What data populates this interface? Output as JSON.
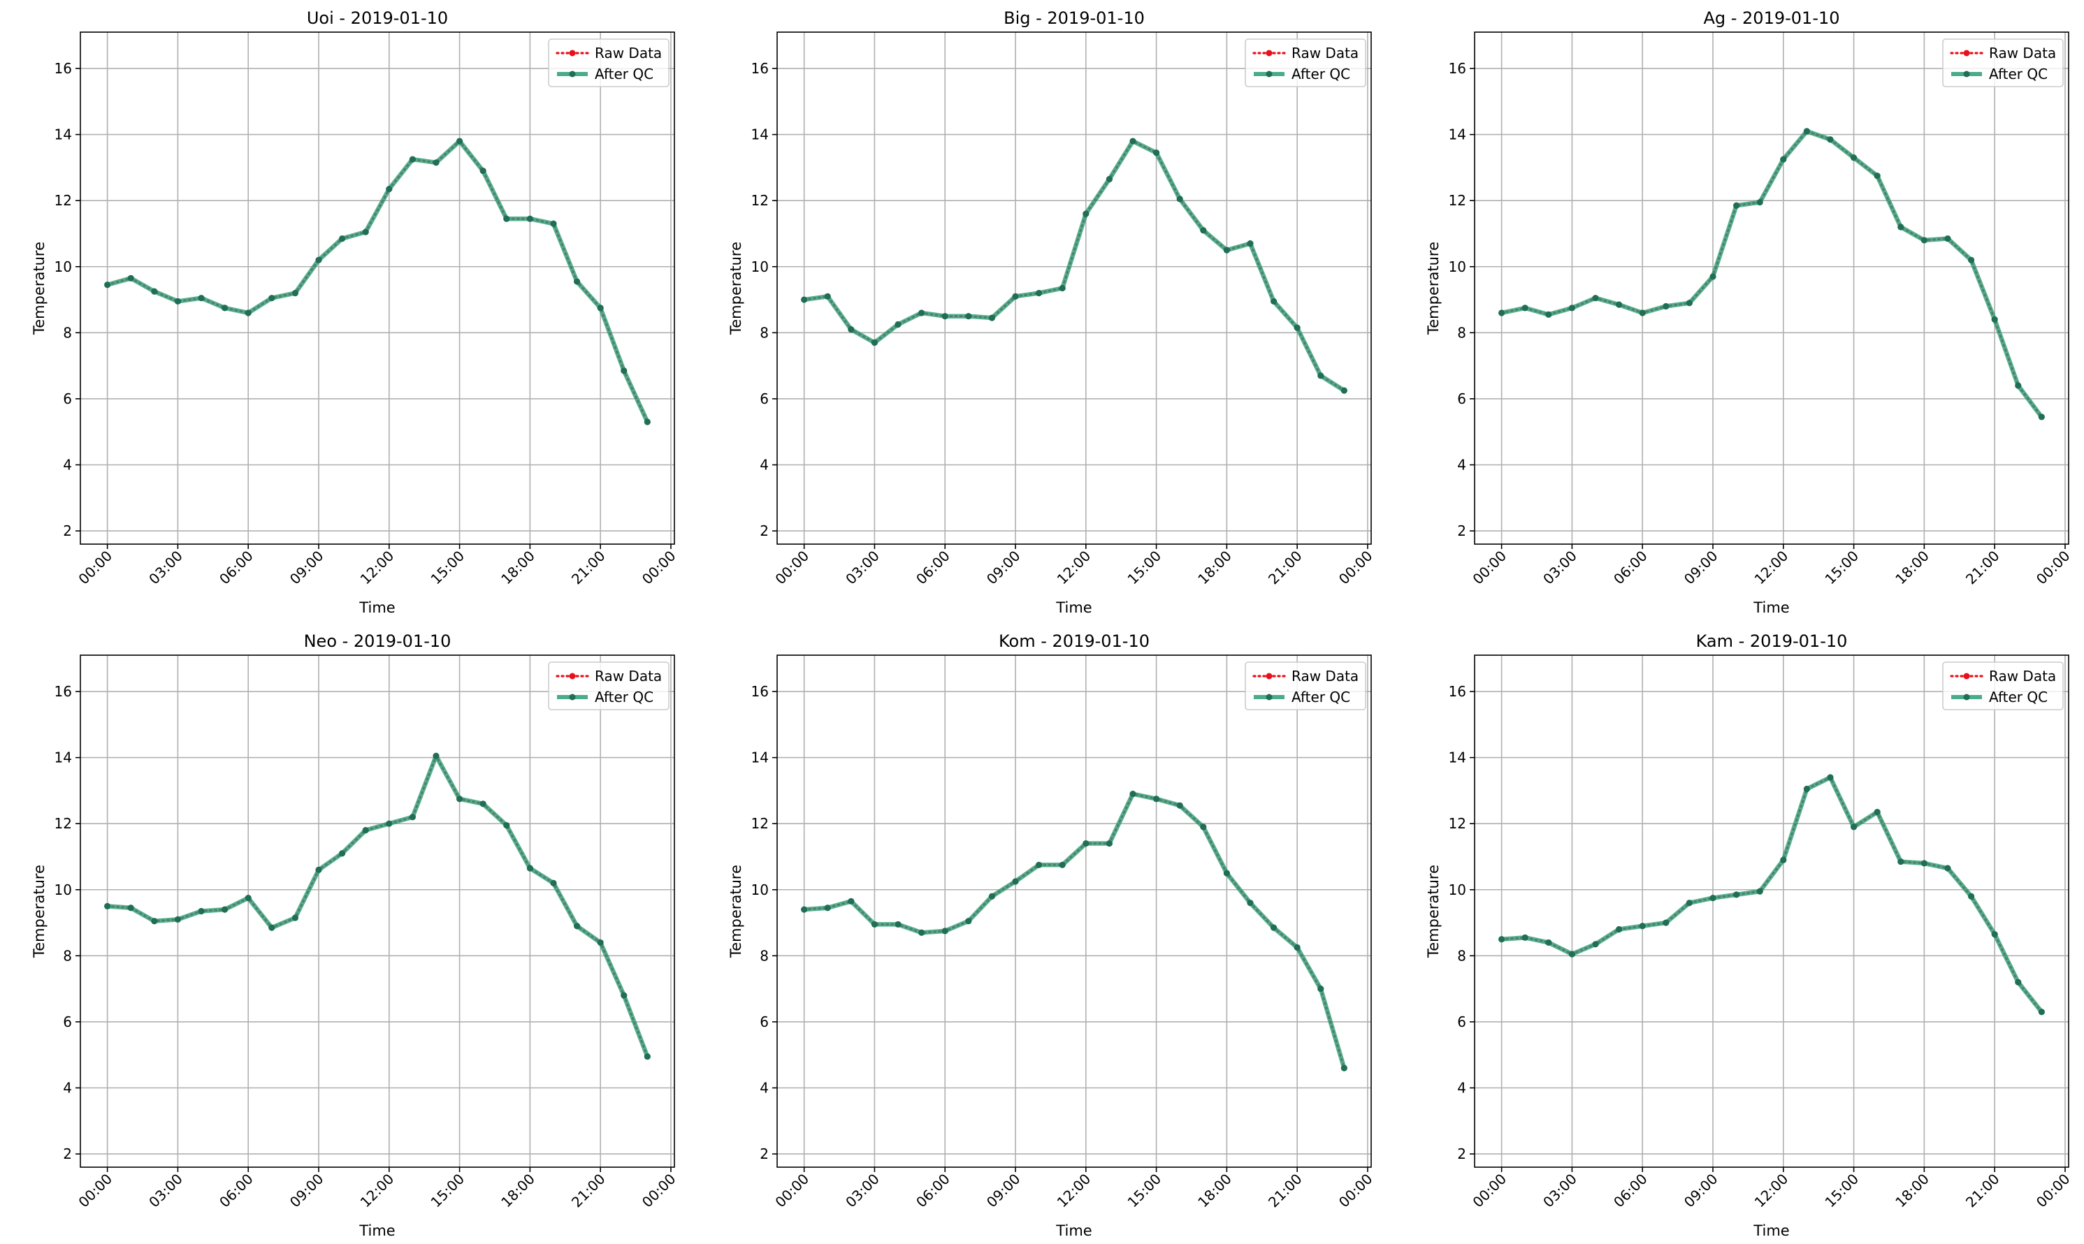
{
  "figure": {
    "colors": {
      "raw": "#e8101a",
      "qc": "#2a9d78",
      "grid": "#b0b0b0"
    }
  },
  "chart_data": [
    {
      "type": "line",
      "title": "Uoi - 2019-01-10",
      "xlabel": "Time",
      "ylabel": "Temperature",
      "grid": true,
      "legend_position": "top-right",
      "ylim": [
        1.6,
        17.1
      ],
      "y_ticks": [
        "2",
        "4",
        "6",
        "8",
        "10",
        "12",
        "14",
        "16"
      ],
      "xlim": [
        "2019-01-09 22:51",
        "2019-01-11 00:09"
      ],
      "x_ticks": [
        "00:00",
        "03:00",
        "06:00",
        "09:00",
        "12:00",
        "15:00",
        "18:00",
        "21:00",
        "00:00"
      ],
      "x": [
        "00:00",
        "01:00",
        "02:00",
        "03:00",
        "04:00",
        "05:00",
        "06:00",
        "07:00",
        "08:00",
        "09:00",
        "10:00",
        "11:00",
        "12:00",
        "13:00",
        "14:00",
        "15:00",
        "16:00",
        "17:00",
        "18:00",
        "19:00",
        "20:00",
        "21:00",
        "22:00",
        "23:00"
      ],
      "series": [
        {
          "name": "Raw Data",
          "values": [
            9.45,
            9.65,
            9.25,
            8.95,
            9.05,
            8.75,
            8.6,
            9.05,
            9.2,
            10.2,
            10.85,
            11.05,
            12.35,
            13.25,
            13.15,
            13.8,
            12.9,
            11.45,
            11.45,
            11.3,
            9.55,
            8.75,
            6.85,
            5.3
          ]
        },
        {
          "name": "After QC",
          "values": [
            9.45,
            9.65,
            9.25,
            8.95,
            9.05,
            8.75,
            8.6,
            9.05,
            9.2,
            10.2,
            10.85,
            11.05,
            12.35,
            13.25,
            13.15,
            13.8,
            12.9,
            11.45,
            11.45,
            11.3,
            9.55,
            8.75,
            6.85,
            5.3
          ]
        }
      ]
    },
    {
      "type": "line",
      "title": "Big - 2019-01-10",
      "xlabel": "Time",
      "ylabel": "Temperature",
      "grid": true,
      "legend_position": "top-right",
      "ylim": [
        1.6,
        17.1
      ],
      "y_ticks": [
        "2",
        "4",
        "6",
        "8",
        "10",
        "12",
        "14",
        "16"
      ],
      "xlim": [
        "2019-01-09 22:51",
        "2019-01-11 00:09"
      ],
      "x_ticks": [
        "00:00",
        "03:00",
        "06:00",
        "09:00",
        "12:00",
        "15:00",
        "18:00",
        "21:00",
        "00:00"
      ],
      "x": [
        "00:00",
        "01:00",
        "02:00",
        "03:00",
        "04:00",
        "05:00",
        "06:00",
        "07:00",
        "08:00",
        "09:00",
        "10:00",
        "11:00",
        "12:00",
        "13:00",
        "14:00",
        "15:00",
        "16:00",
        "17:00",
        "18:00",
        "19:00",
        "20:00",
        "21:00",
        "22:00",
        "23:00"
      ],
      "series": [
        {
          "name": "Raw Data",
          "values": [
            9.0,
            9.1,
            8.1,
            7.7,
            8.25,
            8.6,
            8.5,
            8.5,
            8.45,
            9.1,
            9.2,
            9.35,
            11.6,
            12.65,
            13.8,
            13.45,
            12.05,
            11.1,
            10.5,
            10.7,
            8.95,
            8.15,
            6.7,
            6.25
          ]
        },
        {
          "name": "After QC",
          "values": [
            9.0,
            9.1,
            8.1,
            7.7,
            8.25,
            8.6,
            8.5,
            8.5,
            8.45,
            9.1,
            9.2,
            9.35,
            11.6,
            12.65,
            13.8,
            13.45,
            12.05,
            11.1,
            10.5,
            10.7,
            8.95,
            8.15,
            6.7,
            6.25
          ]
        }
      ]
    },
    {
      "type": "line",
      "title": "Ag - 2019-01-10",
      "xlabel": "Time",
      "ylabel": "Temperature",
      "grid": true,
      "legend_position": "top-right",
      "ylim": [
        1.6,
        17.1
      ],
      "y_ticks": [
        "2",
        "4",
        "6",
        "8",
        "10",
        "12",
        "14",
        "16"
      ],
      "xlim": [
        "2019-01-09 22:51",
        "2019-01-11 00:09"
      ],
      "x_ticks": [
        "00:00",
        "03:00",
        "06:00",
        "09:00",
        "12:00",
        "15:00",
        "18:00",
        "21:00",
        "00:00"
      ],
      "x": [
        "00:00",
        "01:00",
        "02:00",
        "03:00",
        "04:00",
        "05:00",
        "06:00",
        "07:00",
        "08:00",
        "09:00",
        "10:00",
        "11:00",
        "12:00",
        "13:00",
        "14:00",
        "15:00",
        "16:00",
        "17:00",
        "18:00",
        "19:00",
        "20:00",
        "21:00",
        "22:00",
        "23:00"
      ],
      "series": [
        {
          "name": "Raw Data",
          "values": [
            8.6,
            8.75,
            8.55,
            8.75,
            9.05,
            8.85,
            8.6,
            8.8,
            8.9,
            9.7,
            11.85,
            11.95,
            13.25,
            14.1,
            13.85,
            13.3,
            12.75,
            11.2,
            10.8,
            10.85,
            10.2,
            8.4,
            6.4,
            5.45
          ]
        },
        {
          "name": "After QC",
          "values": [
            8.6,
            8.75,
            8.55,
            8.75,
            9.05,
            8.85,
            8.6,
            8.8,
            8.9,
            9.7,
            11.85,
            11.95,
            13.25,
            14.1,
            13.85,
            13.3,
            12.75,
            11.2,
            10.8,
            10.85,
            10.2,
            8.4,
            6.4,
            5.45
          ]
        }
      ]
    },
    {
      "type": "line",
      "title": "Neo - 2019-01-10",
      "xlabel": "Time",
      "ylabel": "Temperature",
      "grid": true,
      "legend_position": "top-right",
      "ylim": [
        1.6,
        17.1
      ],
      "y_ticks": [
        "2",
        "4",
        "6",
        "8",
        "10",
        "12",
        "14",
        "16"
      ],
      "xlim": [
        "2019-01-09 22:51",
        "2019-01-11 00:09"
      ],
      "x_ticks": [
        "00:00",
        "03:00",
        "06:00",
        "09:00",
        "12:00",
        "15:00",
        "18:00",
        "21:00",
        "00:00"
      ],
      "x": [
        "00:00",
        "01:00",
        "02:00",
        "03:00",
        "04:00",
        "05:00",
        "06:00",
        "07:00",
        "08:00",
        "09:00",
        "10:00",
        "11:00",
        "12:00",
        "13:00",
        "14:00",
        "15:00",
        "16:00",
        "17:00",
        "18:00",
        "19:00",
        "20:00",
        "21:00",
        "22:00",
        "23:00"
      ],
      "series": [
        {
          "name": "Raw Data",
          "values": [
            9.5,
            9.45,
            9.05,
            9.1,
            9.35,
            9.4,
            9.75,
            8.85,
            9.15,
            10.6,
            11.1,
            11.8,
            12.0,
            12.2,
            14.05,
            12.75,
            12.6,
            11.95,
            10.65,
            10.2,
            8.9,
            8.4,
            6.8,
            4.95
          ]
        },
        {
          "name": "After QC",
          "values": [
            9.5,
            9.45,
            9.05,
            9.1,
            9.35,
            9.4,
            9.75,
            8.85,
            9.15,
            10.6,
            11.1,
            11.8,
            12.0,
            12.2,
            14.05,
            12.75,
            12.6,
            11.95,
            10.65,
            10.2,
            8.9,
            8.4,
            6.8,
            4.95
          ]
        }
      ]
    },
    {
      "type": "line",
      "title": "Kom - 2019-01-10",
      "xlabel": "Time",
      "ylabel": "Temperature",
      "grid": true,
      "legend_position": "top-right",
      "ylim": [
        1.6,
        17.1
      ],
      "y_ticks": [
        "2",
        "4",
        "6",
        "8",
        "10",
        "12",
        "14",
        "16"
      ],
      "xlim": [
        "2019-01-09 22:51",
        "2019-01-11 00:09"
      ],
      "x_ticks": [
        "00:00",
        "03:00",
        "06:00",
        "09:00",
        "12:00",
        "15:00",
        "18:00",
        "21:00",
        "00:00"
      ],
      "x": [
        "00:00",
        "01:00",
        "02:00",
        "03:00",
        "04:00",
        "05:00",
        "06:00",
        "07:00",
        "08:00",
        "09:00",
        "10:00",
        "11:00",
        "12:00",
        "13:00",
        "14:00",
        "15:00",
        "16:00",
        "17:00",
        "18:00",
        "19:00",
        "20:00",
        "21:00",
        "22:00",
        "23:00"
      ],
      "series": [
        {
          "name": "Raw Data",
          "values": [
            9.4,
            9.45,
            9.65,
            8.95,
            8.95,
            8.7,
            8.75,
            9.05,
            9.8,
            10.25,
            10.75,
            10.75,
            11.4,
            11.4,
            12.9,
            12.75,
            12.55,
            11.9,
            10.5,
            9.6,
            8.85,
            8.25,
            7.0,
            4.6
          ]
        },
        {
          "name": "After QC",
          "values": [
            9.4,
            9.45,
            9.65,
            8.95,
            8.95,
            8.7,
            8.75,
            9.05,
            9.8,
            10.25,
            10.75,
            10.75,
            11.4,
            11.4,
            12.9,
            12.75,
            12.55,
            11.9,
            10.5,
            9.6,
            8.85,
            8.25,
            7.0,
            4.6
          ]
        }
      ]
    },
    {
      "type": "line",
      "title": "Kam - 2019-01-10",
      "xlabel": "Time",
      "ylabel": "Temperature",
      "grid": true,
      "legend_position": "top-right",
      "ylim": [
        1.6,
        17.1
      ],
      "y_ticks": [
        "2",
        "4",
        "6",
        "8",
        "10",
        "12",
        "14",
        "16"
      ],
      "xlim": [
        "2019-01-09 22:51",
        "2019-01-11 00:09"
      ],
      "x_ticks": [
        "00:00",
        "03:00",
        "06:00",
        "09:00",
        "12:00",
        "15:00",
        "18:00",
        "21:00",
        "00:00"
      ],
      "x": [
        "00:00",
        "01:00",
        "02:00",
        "03:00",
        "04:00",
        "05:00",
        "06:00",
        "07:00",
        "08:00",
        "09:00",
        "10:00",
        "11:00",
        "12:00",
        "13:00",
        "14:00",
        "15:00",
        "16:00",
        "17:00",
        "18:00",
        "19:00",
        "20:00",
        "21:00",
        "22:00",
        "23:00"
      ],
      "series": [
        {
          "name": "Raw Data",
          "values": [
            8.5,
            8.55,
            8.4,
            8.05,
            8.35,
            8.8,
            8.9,
            9.0,
            9.6,
            9.75,
            9.85,
            9.95,
            10.9,
            13.05,
            13.4,
            11.9,
            12.35,
            10.85,
            10.8,
            10.65,
            9.8,
            8.65,
            7.2,
            6.3
          ]
        },
        {
          "name": "After QC",
          "values": [
            8.5,
            8.55,
            8.4,
            8.05,
            8.35,
            8.8,
            8.9,
            9.0,
            9.6,
            9.75,
            9.85,
            9.95,
            10.9,
            13.05,
            13.4,
            11.9,
            12.35,
            10.85,
            10.8,
            10.65,
            9.8,
            8.65,
            7.2,
            6.3
          ]
        }
      ]
    }
  ]
}
